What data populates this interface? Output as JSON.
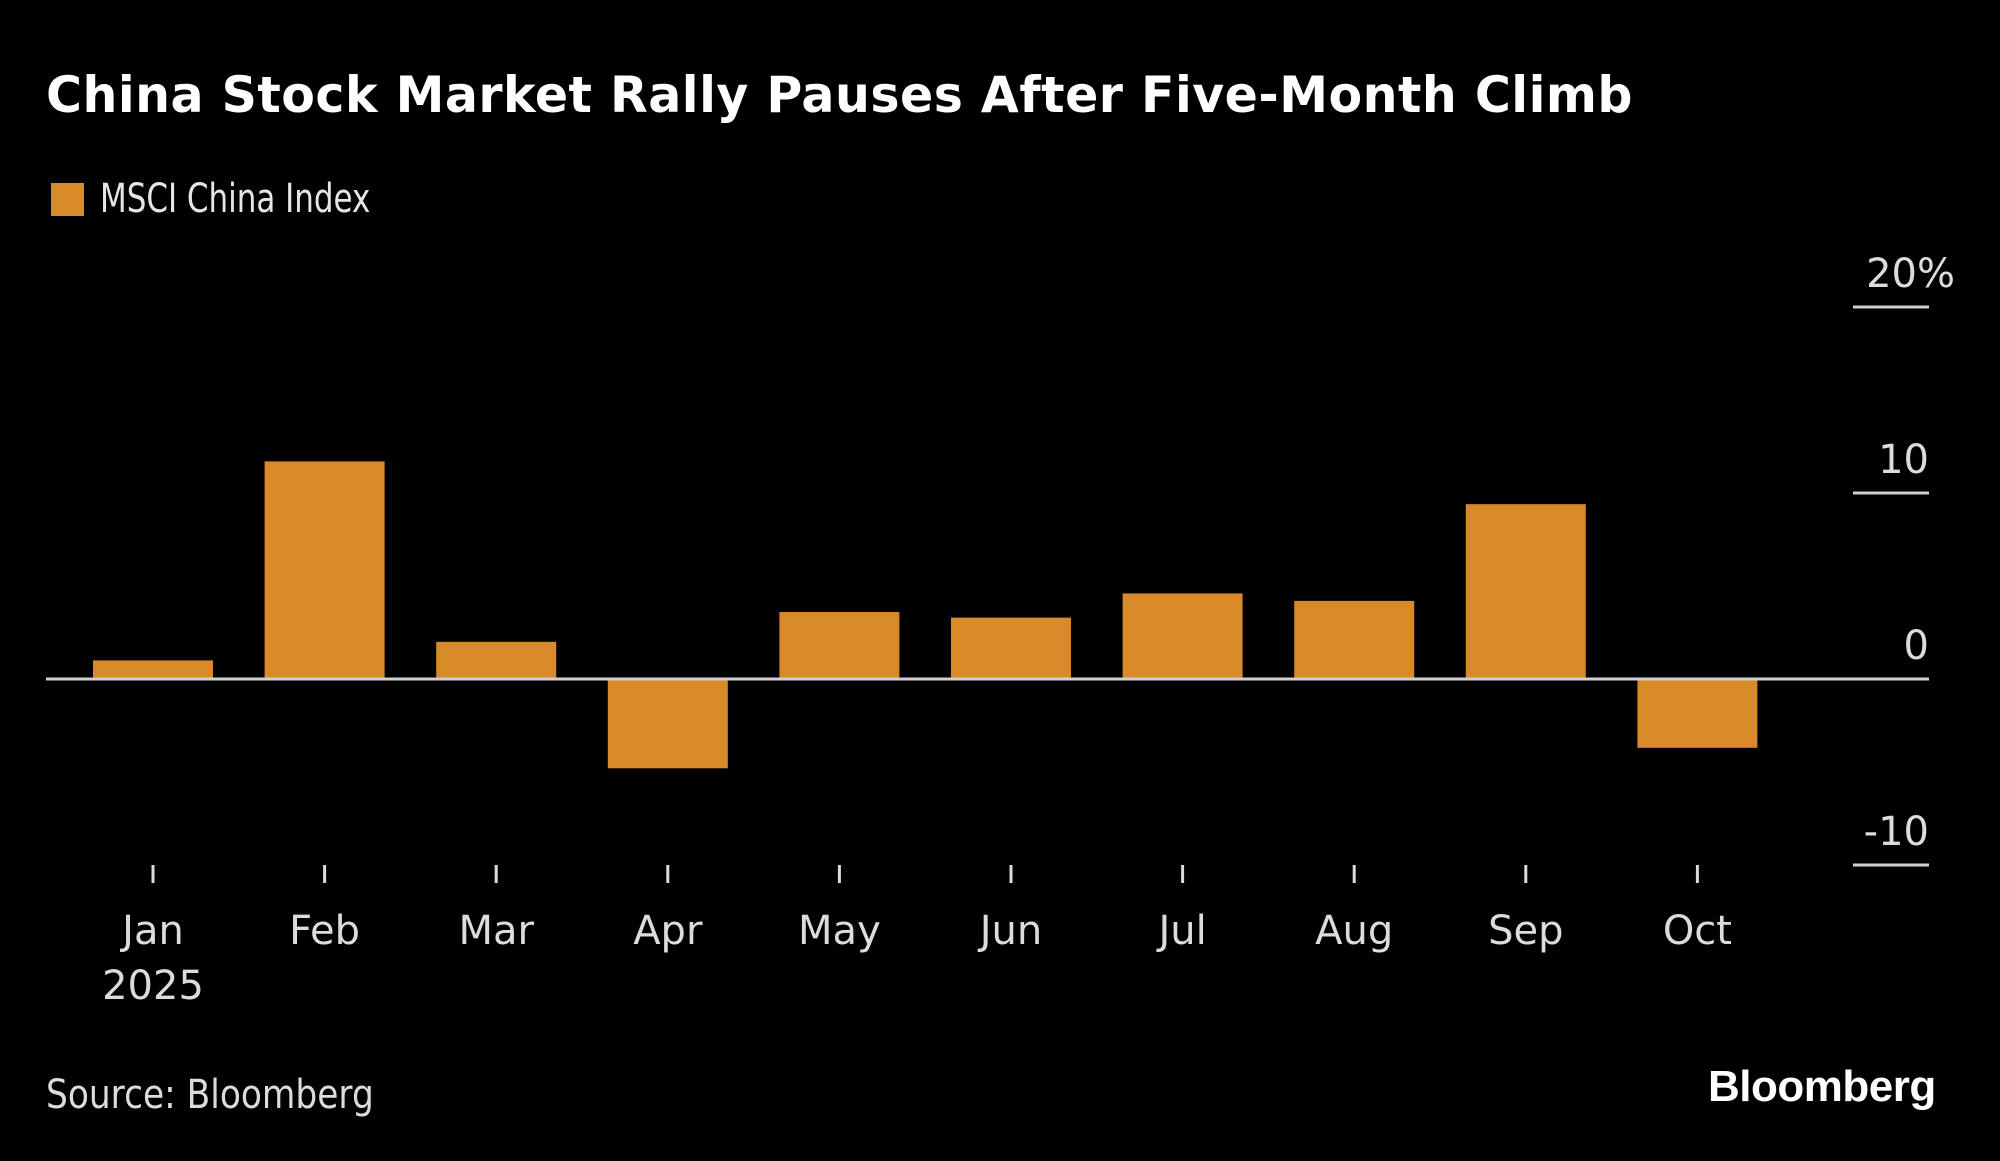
{
  "header": {
    "title": "China Stock Market Rally Pauses After Five-Month Climb"
  },
  "legend": {
    "label": "MSCI China Index",
    "color": "#D98A28"
  },
  "footer": {
    "source": "Source: Bloomberg",
    "brand": "Bloomberg"
  },
  "chart_data": {
    "type": "bar",
    "title": "China Stock Market Rally Pauses After Five-Month Climb",
    "xlabel": "",
    "ylabel": "",
    "categories": [
      "Jan",
      "Feb",
      "Mar",
      "Apr",
      "May",
      "Jun",
      "Jul",
      "Aug",
      "Sep",
      "Oct"
    ],
    "x_sublabels": [
      "2025",
      "",
      "",
      "",
      "",
      "",
      "",
      "",
      "",
      ""
    ],
    "series": [
      {
        "name": "MSCI China Index",
        "color": "#D98A28",
        "values": [
          1.0,
          11.7,
          2.0,
          -4.8,
          3.6,
          3.3,
          4.6,
          4.2,
          9.4,
          -3.7
        ]
      }
    ],
    "ylim": [
      -10,
      20
    ],
    "yticks": [
      20,
      10,
      0,
      -10
    ],
    "ytick_labels": [
      "20%",
      "10",
      "0",
      "-10"
    ],
    "y_axis_side": "right",
    "legend_position": "top-left",
    "grid": false,
    "background": "#000000"
  }
}
